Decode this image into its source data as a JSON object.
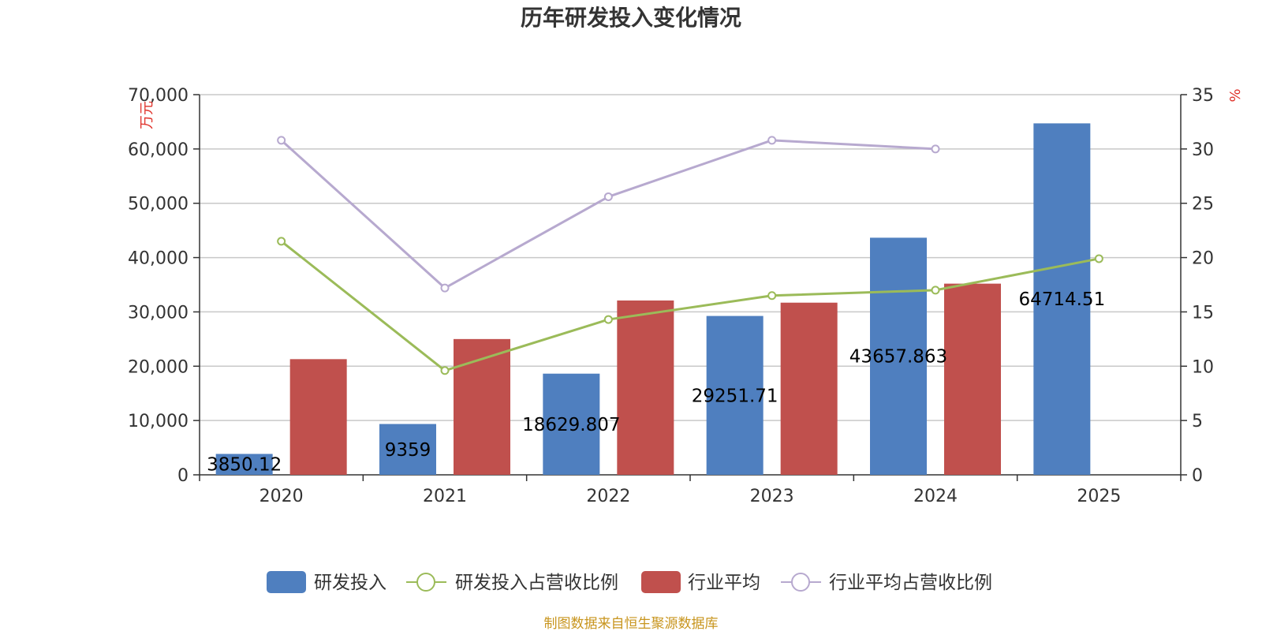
{
  "chart_data": {
    "type": "bar",
    "title": "历年研发投入变化情况",
    "categories": [
      "2020",
      "2021",
      "2022",
      "2023",
      "2024",
      "2025"
    ],
    "y_left": {
      "unit": "万元",
      "ylim": [
        0,
        70000
      ],
      "ticks": [
        0,
        10000,
        20000,
        30000,
        40000,
        50000,
        60000,
        70000
      ]
    },
    "y_right": {
      "unit": "%",
      "ylim": [
        0,
        35
      ],
      "ticks": [
        0,
        5,
        10,
        15,
        20,
        25,
        30,
        35
      ]
    },
    "series": [
      {
        "name": "研发投入",
        "type": "bar",
        "axis": "left",
        "color": "#4f7fbf",
        "values": [
          3850.12,
          9359,
          18629.807,
          29251.71,
          43657.863,
          64714.51
        ],
        "labels": [
          "3850.12",
          "9359",
          "18629.807",
          "29251.71",
          "43657.863",
          "64714.51"
        ]
      },
      {
        "name": "研发投入占营收比例",
        "type": "line",
        "axis": "right",
        "color": "#9bbb59",
        "values": [
          21.5,
          9.6,
          14.3,
          16.5,
          17.0,
          19.9
        ]
      },
      {
        "name": "行业平均",
        "type": "bar",
        "axis": "left",
        "color": "#c0504d",
        "values": [
          21300,
          25000,
          32100,
          31700,
          35200,
          null
        ]
      },
      {
        "name": "行业平均占营收比例",
        "type": "line",
        "axis": "right",
        "color": "#b7a9cf",
        "values": [
          30.8,
          17.2,
          25.6,
          30.8,
          30.0,
          null
        ]
      }
    ],
    "grid": true,
    "legend": "bottom-center"
  },
  "tick_labels_left": [
    "0",
    "10,000",
    "20,000",
    "30,000",
    "40,000",
    "50,000",
    "60,000",
    "70,000"
  ],
  "tick_labels_right": [
    "0",
    "5",
    "10",
    "15",
    "20",
    "25",
    "30",
    "35"
  ],
  "source": "制图数据来自恒生聚源数据库"
}
